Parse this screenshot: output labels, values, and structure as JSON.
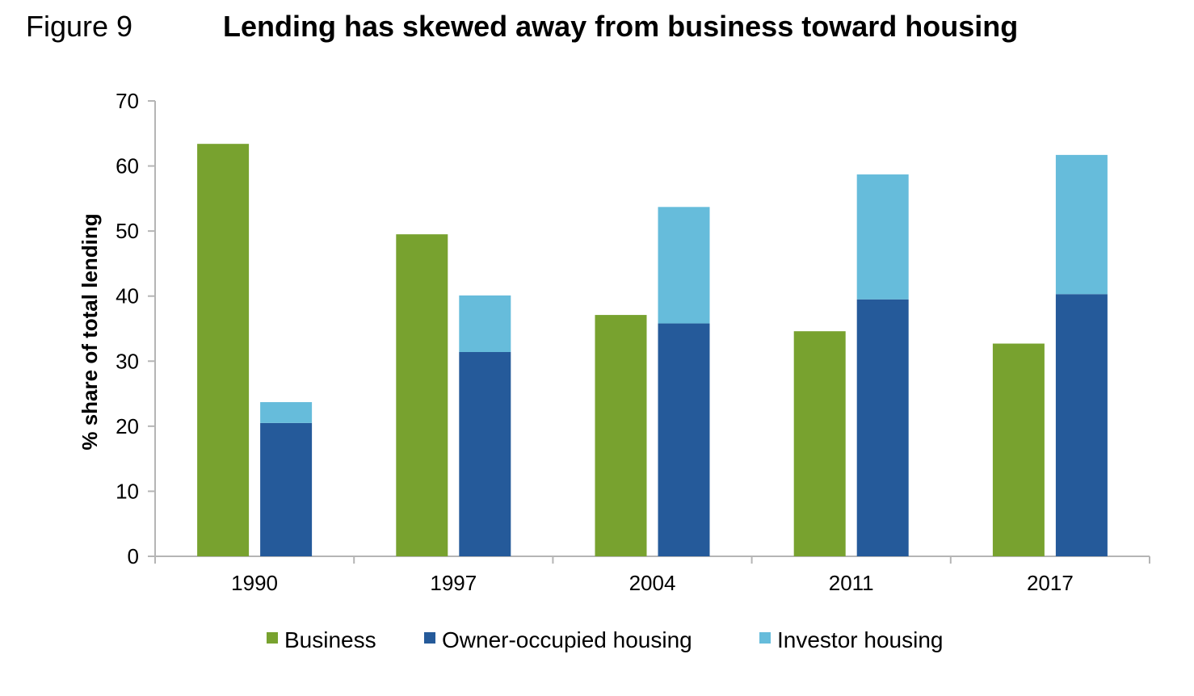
{
  "figure": {
    "label": "Figure 9",
    "title": "Lending has skewed away from business toward housing"
  },
  "colors": {
    "business": "#78a22f",
    "owner_occupied": "#255a9a",
    "investor": "#66bcdb",
    "axis": "#b5b5b5"
  },
  "chart_data": {
    "type": "bar",
    "title": "Lending has skewed away from business toward housing",
    "xlabel": "",
    "ylabel": "% share of total lending",
    "ylim": [
      0,
      70
    ],
    "yticks": [
      0,
      10,
      20,
      30,
      40,
      50,
      60,
      70
    ],
    "categories": [
      "1990",
      "1997",
      "2004",
      "2011",
      "2017"
    ],
    "series": [
      {
        "name": "Business",
        "values": [
          63.4,
          49.5,
          37.1,
          34.6,
          32.7
        ],
        "stack": "business"
      },
      {
        "name": "Owner-occupied  housing",
        "values": [
          20.5,
          31.4,
          35.8,
          39.5,
          40.3
        ],
        "stack": "housing"
      },
      {
        "name": "Investor  housing",
        "values": [
          3.2,
          8.7,
          17.9,
          19.2,
          21.4
        ],
        "stack": "housing"
      }
    ],
    "grid": false,
    "legend_position": "bottom"
  }
}
